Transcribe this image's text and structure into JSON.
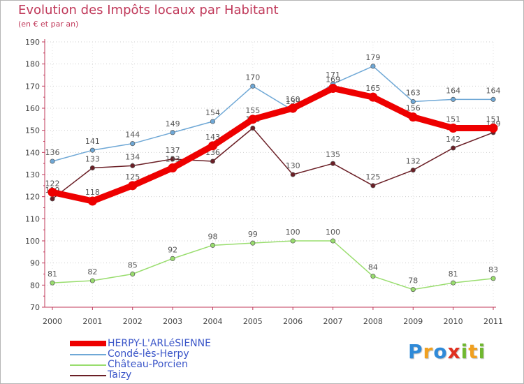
{
  "header": {
    "title": "Evolution des Impôts locaux par Habitant",
    "subtitle": "(en € et par an)"
  },
  "chart_data": {
    "type": "line",
    "title": "Evolution des Impôts locaux par Habitant",
    "subtitle": "(en € et par an)",
    "xlabel": "",
    "ylabel": "",
    "x": [
      "2000",
      "2001",
      "2002",
      "2003",
      "2004",
      "2005",
      "2006",
      "2007",
      "2008",
      "2009",
      "2010",
      "2011"
    ],
    "ylim": [
      70,
      190
    ],
    "yticks": [
      70,
      80,
      90,
      100,
      110,
      120,
      130,
      140,
      150,
      160,
      170,
      180,
      190
    ],
    "grid": "horizontal dotted",
    "legend_position": "bottom-left",
    "series": [
      {
        "name": "Taizy",
        "color": "#6b1f26",
        "values": [
          119,
          133,
          134,
          137,
          136,
          151,
          130,
          135,
          125,
          132,
          142,
          149
        ]
      },
      {
        "name": "Château-Porcien",
        "color": "#99dd6e",
        "values": [
          81,
          82,
          85,
          92,
          98,
          99,
          100,
          100,
          84,
          78,
          81,
          83
        ]
      },
      {
        "name": "Condé-lès-Herpy",
        "color": "#6fa8d6",
        "values": [
          136,
          141,
          144,
          149,
          154,
          170,
          159,
          171,
          179,
          163,
          164,
          164
        ]
      },
      {
        "name": "HERPY-L'ARLéSIENNE",
        "color": "#ee0000",
        "values": [
          122,
          118,
          125,
          133,
          143,
          155,
          160,
          169,
          165,
          156,
          151,
          151
        ]
      }
    ]
  },
  "legend": {
    "items": [
      {
        "label": "HERPY-L'ARLéSIENNE",
        "color": "#ee0000"
      },
      {
        "label": "Condé-lès-Herpy",
        "color": "#6fa8d6"
      },
      {
        "label": "Château-Porcien",
        "color": "#99dd6e"
      },
      {
        "label": "Taizy",
        "color": "#6b1f26"
      }
    ]
  },
  "logo": {
    "letters": [
      "P",
      "r",
      "o",
      "x",
      "i",
      "t",
      "i"
    ],
    "colors": [
      "#2f8ad8",
      "#f0a020",
      "#2f8ad8",
      "#e03020",
      "#70b830",
      "#f0a020",
      "#70b830"
    ]
  }
}
